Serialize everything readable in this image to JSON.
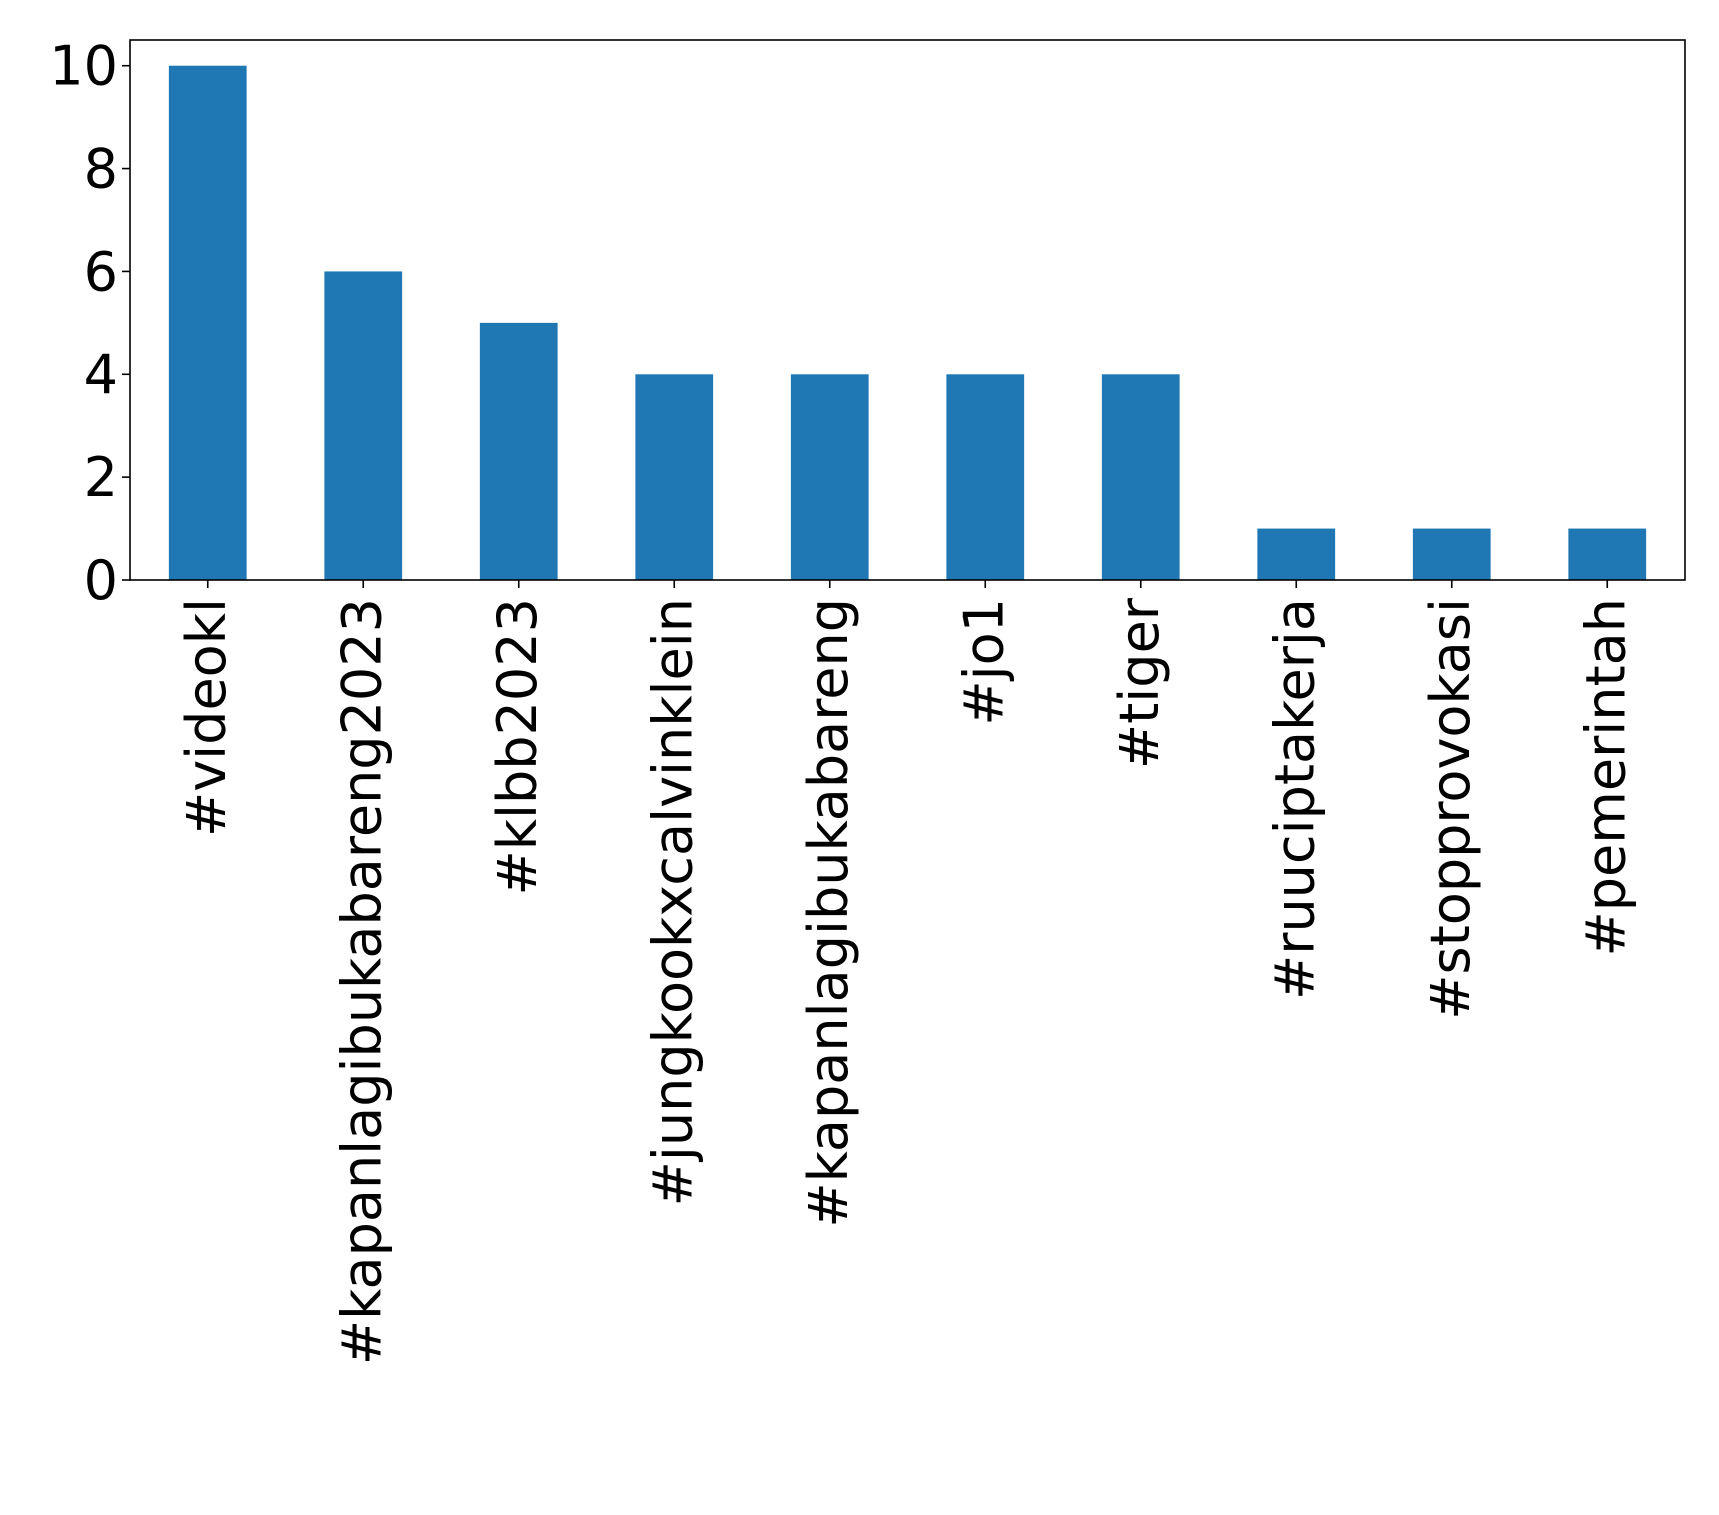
{
  "chart_data": {
    "type": "bar",
    "title": "",
    "xlabel": "",
    "ylabel": "",
    "categories": [
      "#videokl",
      "#kapanlagibukabareng2023",
      "#klbb2023",
      "#jungkookxcalvinklein",
      "#kapanlagibukabareng",
      "#jo1",
      "#tiger",
      "#ruuciptakerja",
      "#stopprovokasi",
      "#pemerintah"
    ],
    "values": [
      10,
      6,
      5,
      4,
      4,
      4,
      4,
      1,
      1,
      1
    ],
    "ylim": [
      0,
      10.5
    ],
    "yticks": [
      0,
      2,
      4,
      6,
      8,
      10
    ],
    "grid": false,
    "legend": "none",
    "bar_color": "#1f77b4",
    "axis_color": "#000000"
  }
}
